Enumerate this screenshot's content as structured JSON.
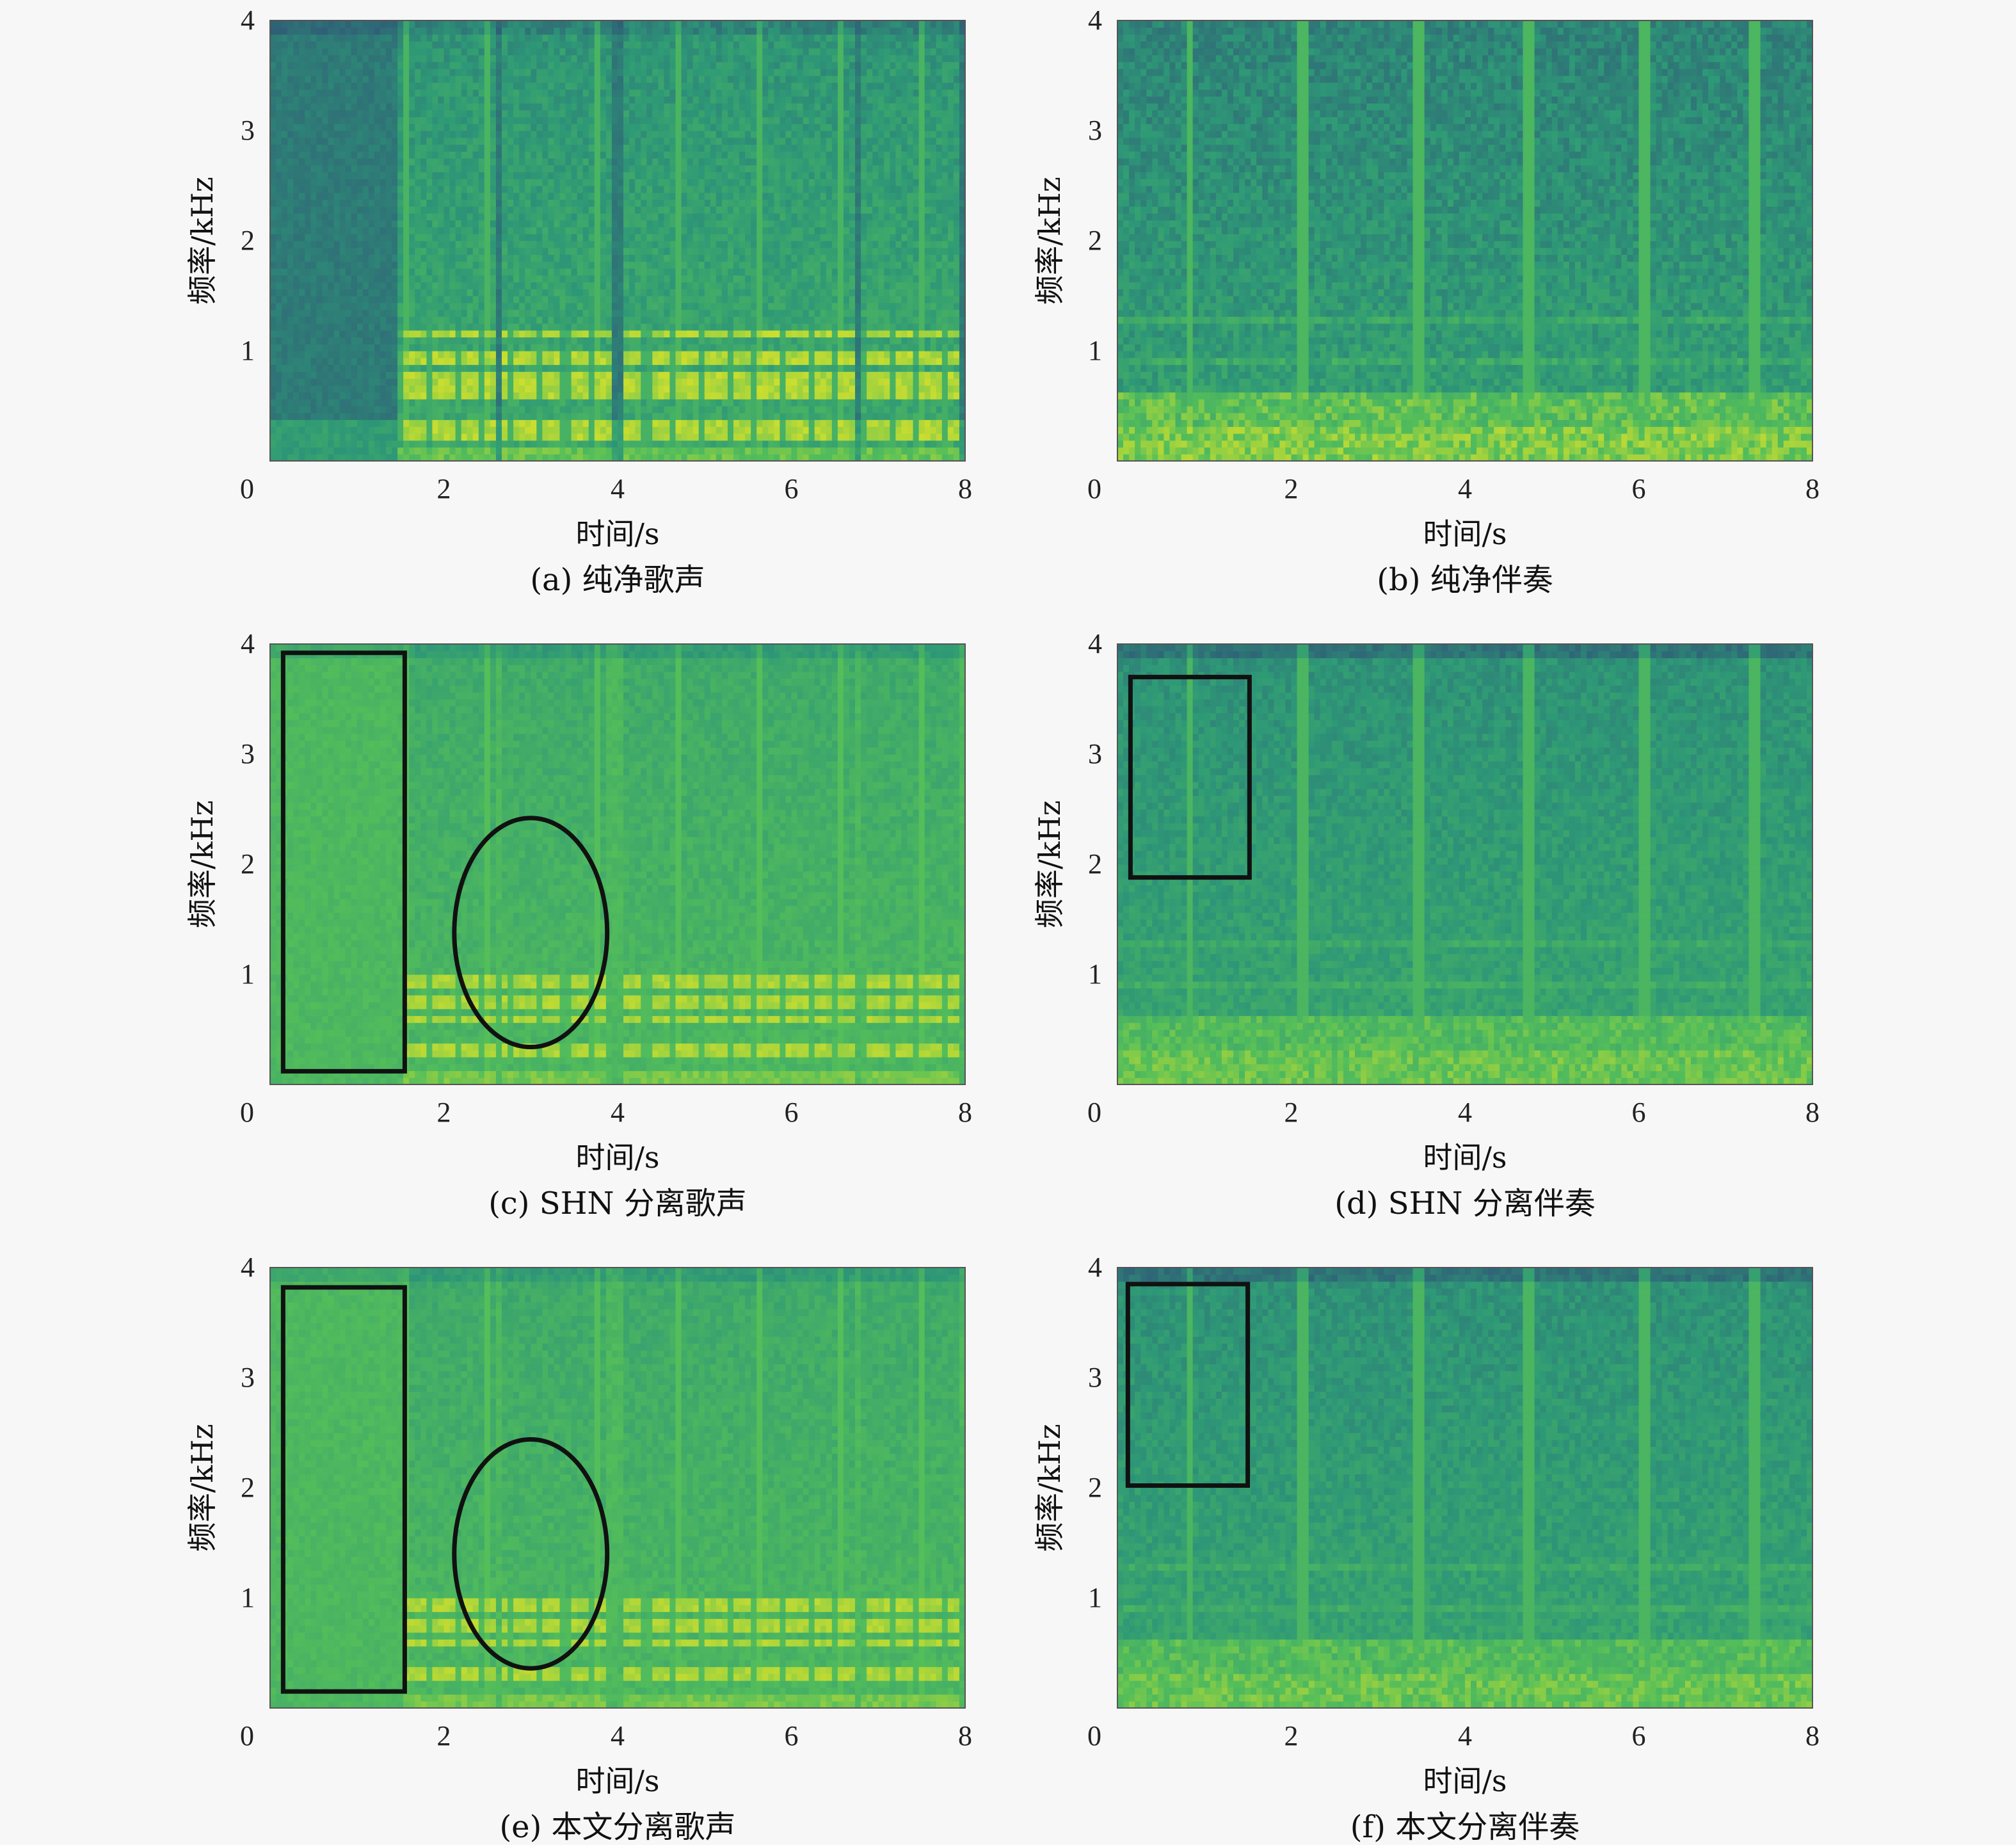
{
  "colors": {
    "background": "#f7f7f7",
    "spectro_dark": "#2f6077",
    "spectro_mid": "#2e9877",
    "spectro_green": "#54be5a",
    "spectro_bright": "#d8e12a",
    "annotation": "#111111"
  },
  "chart_data": [
    {
      "id": "a",
      "type": "heatmap",
      "caption": "(a) 纯净歌声",
      "xlabel": "时间/s",
      "ylabel": "频率/kHz",
      "xlim": [
        0,
        8
      ],
      "ylim": [
        0,
        4
      ],
      "xticks": [
        0,
        2,
        4,
        6,
        8
      ],
      "yticks": [
        1,
        2,
        3,
        4
      ],
      "kind": "vocal",
      "tone": "clean",
      "vocal_segments": [
        [
          1.45,
          2.6
        ],
        [
          2.65,
          3.9
        ],
        [
          4.05,
          6.05
        ],
        [
          6.1,
          6.7
        ],
        [
          6.8,
          7.95
        ]
      ],
      "harmonic_bands_khz": [
        0.25,
        0.36,
        0.62,
        0.75,
        0.95,
        1.15
      ],
      "annotations": []
    },
    {
      "id": "b",
      "type": "heatmap",
      "caption": "(b) 纯净伴奏",
      "xlabel": "时间/s",
      "ylabel": "频率/kHz",
      "xlim": [
        0,
        8
      ],
      "ylim": [
        0,
        4
      ],
      "xticks": [
        0,
        2,
        4,
        6,
        8
      ],
      "yticks": [
        1,
        2,
        3,
        4
      ],
      "kind": "accomp",
      "tone": "clean",
      "onsets_s": [
        0.85,
        2.15,
        3.45,
        4.75,
        6.05,
        7.35
      ],
      "annotations": []
    },
    {
      "id": "c",
      "type": "heatmap",
      "caption": "(c) SHN 分离歌声",
      "xlabel": "时间/s",
      "ylabel": "频率/kHz",
      "xlim": [
        0,
        8
      ],
      "ylim": [
        0,
        4
      ],
      "xticks": [
        0,
        2,
        4,
        6,
        8
      ],
      "yticks": [
        1,
        2,
        3,
        4
      ],
      "kind": "vocal",
      "tone": "separated",
      "vocal_segments": [
        [
          1.55,
          2.6
        ],
        [
          2.65,
          3.85
        ],
        [
          4.05,
          6.05
        ],
        [
          6.1,
          6.7
        ],
        [
          6.8,
          7.95
        ]
      ],
      "harmonic_bands_khz": [
        0.3,
        0.6,
        0.75,
        0.95
      ],
      "annotations": [
        {
          "shape": "rect",
          "x0": 0.15,
          "x1": 1.55,
          "y0": 0.12,
          "y1": 3.92
        },
        {
          "shape": "ellipse",
          "cx": 3.0,
          "cy": 1.38,
          "rx": 0.88,
          "ry": 1.04
        }
      ]
    },
    {
      "id": "d",
      "type": "heatmap",
      "caption": "(d) SHN 分离伴奏",
      "xlabel": "时间/s",
      "ylabel": "频率/kHz",
      "xlim": [
        0,
        8
      ],
      "ylim": [
        0,
        4
      ],
      "xticks": [
        0,
        2,
        4,
        6,
        8
      ],
      "yticks": [
        1,
        2,
        3,
        4
      ],
      "kind": "accomp",
      "tone": "separated",
      "onsets_s": [
        0.85,
        2.15,
        3.45,
        4.75,
        6.05,
        7.35
      ],
      "annotations": [
        {
          "shape": "rect",
          "x0": 0.15,
          "x1": 1.52,
          "y0": 1.88,
          "y1": 3.7
        }
      ]
    },
    {
      "id": "e",
      "type": "heatmap",
      "caption": "(e) 本文分离歌声",
      "xlabel": "时间/s",
      "ylabel": "频率/kHz",
      "xlim": [
        0,
        8
      ],
      "ylim": [
        0,
        4
      ],
      "xticks": [
        0,
        2,
        4,
        6,
        8
      ],
      "yticks": [
        1,
        2,
        3,
        4
      ],
      "kind": "vocal",
      "tone": "separated",
      "vocal_segments": [
        [
          1.55,
          2.6
        ],
        [
          2.65,
          3.85
        ],
        [
          4.05,
          6.05
        ],
        [
          6.1,
          6.7
        ],
        [
          6.8,
          7.95
        ]
      ],
      "harmonic_bands_khz": [
        0.3,
        0.6,
        0.75,
        0.95
      ],
      "annotations": [
        {
          "shape": "rect",
          "x0": 0.15,
          "x1": 1.55,
          "y0": 0.15,
          "y1": 3.82
        },
        {
          "shape": "ellipse",
          "cx": 3.0,
          "cy": 1.4,
          "rx": 0.88,
          "ry": 1.04
        }
      ]
    },
    {
      "id": "f",
      "type": "heatmap",
      "caption": "(f) 本文分离伴奏",
      "xlabel": "时间/s",
      "ylabel": "频率/kHz",
      "xlim": [
        0,
        8
      ],
      "ylim": [
        0,
        4
      ],
      "xticks": [
        0,
        2,
        4,
        6,
        8
      ],
      "yticks": [
        1,
        2,
        3,
        4
      ],
      "kind": "accomp",
      "tone": "separated",
      "onsets_s": [
        0.85,
        2.15,
        3.45,
        4.75,
        6.05,
        7.35
      ],
      "annotations": [
        {
          "shape": "rect",
          "x0": 0.12,
          "x1": 1.5,
          "y0": 2.02,
          "y1": 3.85
        }
      ]
    }
  ]
}
